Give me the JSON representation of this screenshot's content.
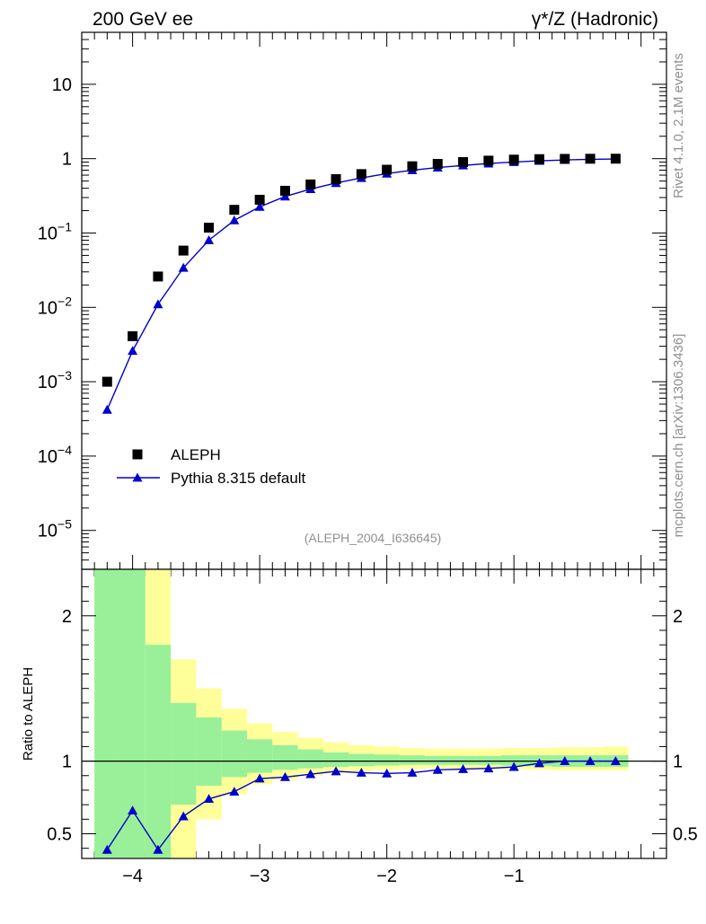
{
  "header": {
    "left_title": "200 GeV ee",
    "right_title": "γ*/Z (Hadronic)"
  },
  "side_labels": {
    "rivet": "Rivet 4.1.0,  2.1M events",
    "mcplots": "mcplots.cern.ch [arXiv:1306.3436]"
  },
  "analysis_label": "(ALEPH_2004_I636645)",
  "colors": {
    "data": "#000000",
    "mc": "#0000cc",
    "band_inner": "#99f099",
    "band_outer": "#ffff99",
    "axis": "#000000",
    "muted": "#909090"
  },
  "chart_data": [
    {
      "type": "scatter",
      "panel": "main",
      "yscale": "log",
      "xlim": [
        -4.4,
        0.2
      ],
      "ylim": [
        3e-06,
        50
      ],
      "ytick_labels": [
        "10",
        "1",
        "10^-1",
        "10^-2",
        "10^-3",
        "10^-4",
        "10^-5"
      ],
      "ytick_values": [
        10,
        1,
        0.1,
        0.01,
        0.001,
        0.0001,
        1e-05
      ],
      "legend_position": "lower-left",
      "series": [
        {
          "name": "ALEPH",
          "marker": "square",
          "x": [
            -4.2,
            -4.0,
            -3.8,
            -3.6,
            -3.4,
            -3.2,
            -3.0,
            -2.8,
            -2.6,
            -2.4,
            -2.2,
            -2.0,
            -1.8,
            -1.6,
            -1.4,
            -1.2,
            -1.0,
            -0.8,
            -0.6,
            -0.4,
            -0.2
          ],
          "values": [
            0.001,
            0.0041,
            0.026,
            0.058,
            0.118,
            0.205,
            0.28,
            0.37,
            0.45,
            0.53,
            0.62,
            0.71,
            0.79,
            0.85,
            0.9,
            0.94,
            0.97,
            0.985,
            0.993,
            0.997,
            0.999
          ]
        },
        {
          "name": "Pythia 8.315 default",
          "marker": "triangle",
          "line": true,
          "x": [
            -4.2,
            -4.0,
            -3.8,
            -3.6,
            -3.4,
            -3.2,
            -3.0,
            -2.8,
            -2.6,
            -2.4,
            -2.2,
            -2.0,
            -1.8,
            -1.6,
            -1.4,
            -1.2,
            -1.0,
            -0.8,
            -0.6,
            -0.4,
            -0.2
          ],
          "values": [
            0.00042,
            0.0026,
            0.011,
            0.034,
            0.08,
            0.148,
            0.225,
            0.31,
            0.39,
            0.47,
            0.55,
            0.63,
            0.7,
            0.76,
            0.81,
            0.86,
            0.9,
            0.935,
            0.96,
            0.98,
            0.99
          ]
        }
      ]
    },
    {
      "type": "scatter",
      "panel": "ratio",
      "ylabel": "Ratio to ALEPH",
      "xlim": [
        -4.4,
        0.2
      ],
      "ylim": [
        0.33,
        2.32
      ],
      "xtick_labels": [
        "−4",
        "−3",
        "−2",
        "−1"
      ],
      "xtick_values": [
        -4,
        -3,
        -2,
        -1
      ],
      "ytick_labels": [
        "2",
        "1",
        "0.5"
      ],
      "ytick_values": [
        2,
        1,
        0.5
      ],
      "reference_line": 1,
      "bands": {
        "edges": [
          -4.3,
          -4.1,
          -3.9,
          -3.7,
          -3.5,
          -3.3,
          -3.1,
          -2.9,
          -2.7,
          -2.5,
          -2.3,
          -2.1,
          -1.9,
          -1.7,
          -1.5,
          -1.3,
          -1.1,
          -0.9,
          -0.7,
          -0.5,
          -0.3,
          -0.1
        ],
        "inner_lo": [
          0.3,
          0.3,
          0.3,
          0.7,
          0.83,
          0.89,
          0.92,
          0.94,
          0.95,
          0.96,
          0.965,
          0.97,
          0.975,
          0.975,
          0.975,
          0.975,
          0.97,
          0.965,
          0.96,
          0.96,
          0.96
        ],
        "inner_hi": [
          2.5,
          2.5,
          1.8,
          1.4,
          1.3,
          1.21,
          1.15,
          1.11,
          1.08,
          1.06,
          1.05,
          1.045,
          1.04,
          1.035,
          1.035,
          1.035,
          1.04,
          1.04,
          1.04,
          1.04,
          1.04
        ],
        "outer_lo": [
          0.3,
          0.3,
          0.3,
          0.3,
          0.6,
          0.77,
          0.84,
          0.87,
          0.9,
          0.92,
          0.93,
          0.94,
          0.945,
          0.95,
          0.95,
          0.95,
          0.945,
          0.94,
          0.935,
          0.935,
          0.935
        ],
        "outer_hi": [
          2.5,
          2.5,
          2.5,
          1.7,
          1.5,
          1.36,
          1.26,
          1.2,
          1.16,
          1.13,
          1.11,
          1.1,
          1.09,
          1.085,
          1.085,
          1.085,
          1.09,
          1.09,
          1.095,
          1.095,
          1.1
        ]
      },
      "series": [
        {
          "name": "Pythia 8.315 default / ALEPH",
          "marker": "triangle",
          "line": true,
          "x": [
            -4.2,
            -4.0,
            -3.8,
            -3.6,
            -3.4,
            -3.2,
            -3.0,
            -2.8,
            -2.6,
            -2.4,
            -2.2,
            -2.0,
            -1.8,
            -1.6,
            -1.4,
            -1.2,
            -1.0,
            -0.8,
            -0.6,
            -0.4,
            -0.2
          ],
          "values": [
            0.39,
            0.66,
            0.39,
            0.62,
            0.74,
            0.79,
            0.88,
            0.89,
            0.91,
            0.93,
            0.92,
            0.915,
            0.92,
            0.94,
            0.945,
            0.95,
            0.96,
            0.985,
            1.0,
            1.0,
            1.0
          ],
          "errors": [
            0.015,
            0.01,
            0.01,
            0,
            0,
            0,
            0,
            0,
            0,
            0,
            0,
            0,
            0,
            0,
            0,
            0,
            0,
            0,
            0,
            0,
            0
          ]
        }
      ]
    }
  ]
}
